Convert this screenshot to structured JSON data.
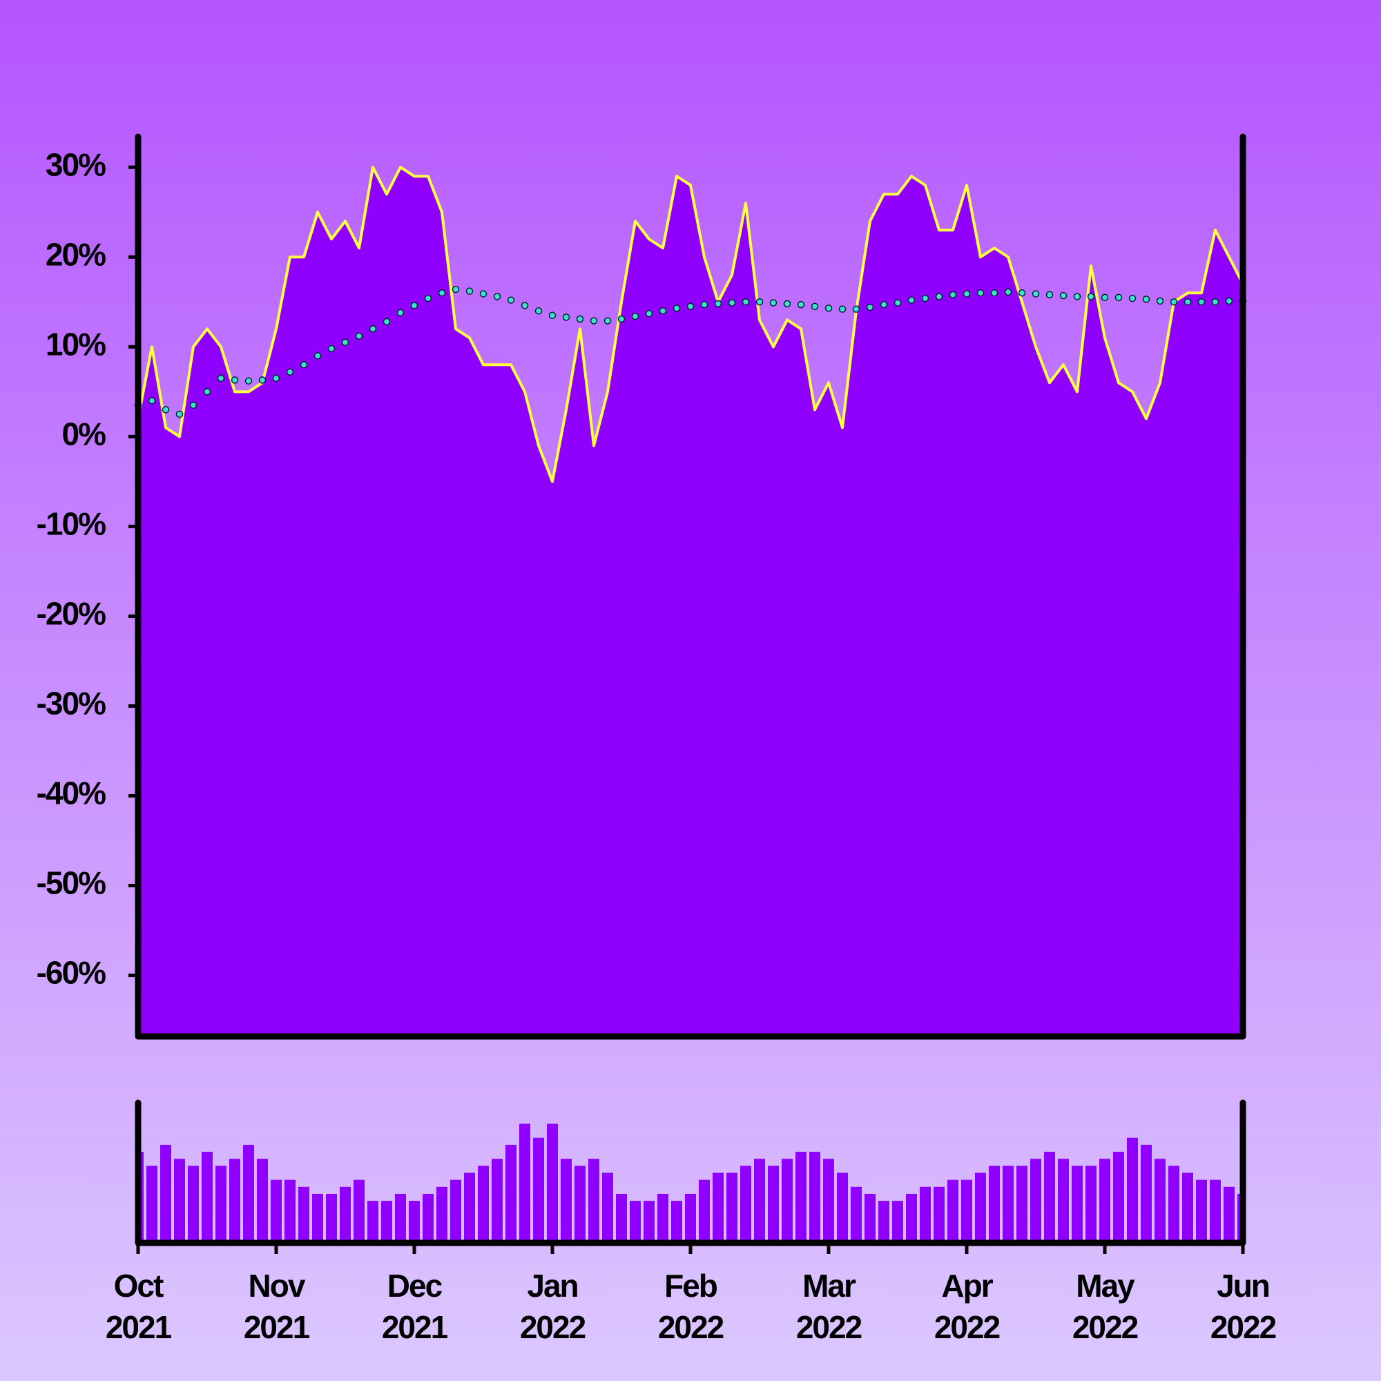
{
  "chart_data": [
    {
      "type": "line",
      "x": [
        0,
        0.1,
        0.2,
        0.3,
        0.4,
        0.5,
        0.6,
        0.7,
        0.8,
        0.9,
        1,
        1.1,
        1.2,
        1.3,
        1.4,
        1.5,
        1.6,
        1.7,
        1.8,
        1.9,
        2,
        2.1,
        2.2,
        2.3,
        2.4,
        2.5,
        2.6,
        2.7,
        2.8,
        2.9,
        3,
        3.1,
        3.2,
        3.3,
        3.4,
        3.5,
        3.6,
        3.7,
        3.8,
        3.9,
        4,
        4.1,
        4.2,
        4.3,
        4.4,
        4.5,
        4.6,
        4.7,
        4.8,
        4.9,
        5,
        5.1,
        5.2,
        5.3,
        5.4,
        5.5,
        5.6,
        5.7,
        5.8,
        5.9,
        6,
        6.1,
        6.2,
        6.3,
        6.4,
        6.5,
        6.6,
        6.7,
        6.8,
        6.9,
        7,
        7.1,
        7.2,
        7.3,
        7.4,
        7.5,
        7.6,
        7.7,
        7.8,
        7.9,
        8
      ],
      "series": [
        {
          "color": "#ffff40",
          "fill": "#9000ff",
          "values": [
            2,
            10,
            1,
            0,
            10,
            12,
            10,
            5,
            5,
            6,
            12,
            20,
            20,
            25,
            22,
            24,
            21,
            30,
            27,
            30,
            29,
            29,
            25,
            12,
            11,
            8,
            8,
            8,
            5,
            -1,
            -5,
            3,
            12,
            -1,
            5,
            15,
            24,
            22,
            21,
            29,
            28,
            20,
            15,
            18,
            26,
            13,
            10,
            13,
            12,
            3,
            6,
            1,
            14,
            24,
            27,
            27,
            29,
            28,
            23,
            23,
            28,
            20,
            21,
            20,
            15,
            10,
            6,
            8,
            5,
            19,
            11,
            6,
            5,
            2,
            6,
            15,
            16,
            16,
            23,
            20,
            17
          ]
        },
        {
          "color": "#40e0d0",
          "style": "dots",
          "values": [
            3.5,
            4,
            3,
            2.5,
            3.5,
            5,
            6.5,
            6.3,
            6.2,
            6.3,
            6.5,
            7.2,
            8,
            9,
            9.8,
            10.5,
            11.2,
            12,
            12.8,
            13.8,
            14.6,
            15.4,
            16,
            16.4,
            16.2,
            15.9,
            15.6,
            15.2,
            14.6,
            14,
            13.5,
            13.3,
            13.1,
            12.9,
            12.9,
            13.1,
            13.4,
            13.7,
            14,
            14.3,
            14.5,
            14.7,
            14.8,
            14.9,
            15,
            15,
            14.9,
            14.8,
            14.7,
            14.5,
            14.3,
            14.2,
            14.2,
            14.4,
            14.7,
            14.9,
            15.2,
            15.4,
            15.6,
            15.8,
            15.9,
            16,
            16,
            16.1,
            16,
            15.9,
            15.8,
            15.7,
            15.6,
            15.6,
            15.5,
            15.5,
            15.4,
            15.3,
            15.1,
            15,
            15,
            15,
            15,
            15.1,
            15.1
          ]
        }
      ],
      "xlim": [
        0,
        8
      ],
      "ylim": [
        -66.8,
        33.4
      ],
      "yticks": [
        {
          "value": 30,
          "label": "30%"
        },
        {
          "value": 20,
          "label": "20%"
        },
        {
          "value": 10,
          "label": "10%"
        },
        {
          "value": 0,
          "label": "0%"
        },
        {
          "value": -10,
          "label": "-10%"
        },
        {
          "value": -20,
          "label": "-20%"
        },
        {
          "value": -30,
          "label": "-30%"
        },
        {
          "value": -40,
          "label": "-40%"
        },
        {
          "value": -50,
          "label": "-50%"
        },
        {
          "value": -60,
          "label": "-60%"
        }
      ]
    },
    {
      "type": "bar",
      "color": "#9000ff",
      "x": [
        0,
        0.1,
        0.2,
        0.3,
        0.4,
        0.5,
        0.6,
        0.7,
        0.8,
        0.9,
        1,
        1.1,
        1.2,
        1.3,
        1.4,
        1.5,
        1.6,
        1.7,
        1.8,
        1.9,
        2,
        2.1,
        2.2,
        2.3,
        2.4,
        2.5,
        2.6,
        2.7,
        2.8,
        2.9,
        3,
        3.1,
        3.2,
        3.3,
        3.4,
        3.5,
        3.6,
        3.7,
        3.8,
        3.9,
        4,
        4.1,
        4.2,
        4.3,
        4.4,
        4.5,
        4.6,
        4.7,
        4.8,
        4.9,
        5,
        5.1,
        5.2,
        5.3,
        5.4,
        5.5,
        5.6,
        5.7,
        5.8,
        5.9,
        6,
        6.1,
        6.2,
        6.3,
        6.4,
        6.5,
        6.6,
        6.7,
        6.8,
        6.9,
        7,
        7.1,
        7.2,
        7.3,
        7.4,
        7.5,
        7.6,
        7.7,
        7.8,
        7.9,
        8
      ],
      "values": [
        65,
        55,
        70,
        60,
        55,
        65,
        55,
        60,
        70,
        60,
        45,
        45,
        40,
        35,
        35,
        40,
        45,
        30,
        30,
        35,
        30,
        35,
        40,
        45,
        50,
        55,
        60,
        70,
        85,
        75,
        85,
        60,
        55,
        60,
        50,
        35,
        30,
        30,
        35,
        30,
        35,
        45,
        50,
        50,
        55,
        60,
        55,
        60,
        65,
        65,
        60,
        50,
        40,
        35,
        30,
        30,
        35,
        40,
        40,
        45,
        45,
        50,
        55,
        55,
        55,
        60,
        65,
        60,
        55,
        55,
        60,
        65,
        75,
        70,
        60,
        55,
        50,
        45,
        45,
        40,
        35
      ],
      "xlim": [
        0,
        8
      ],
      "ylim": [
        0,
        100
      ],
      "xticks": [
        {
          "value": 0,
          "label": [
            "Oct",
            "2021"
          ]
        },
        {
          "value": 1,
          "label": [
            "Nov",
            "2021"
          ]
        },
        {
          "value": 2,
          "label": [
            "Dec",
            "2021"
          ]
        },
        {
          "value": 3,
          "label": [
            "Jan",
            "2022"
          ]
        },
        {
          "value": 4,
          "label": [
            "Feb",
            "2022"
          ]
        },
        {
          "value": 5,
          "label": [
            "Mar",
            "2022"
          ]
        },
        {
          "value": 6,
          "label": [
            "Apr",
            "2022"
          ]
        },
        {
          "value": 7,
          "label": [
            "May",
            "2022"
          ]
        },
        {
          "value": 8,
          "label": [
            "Jun",
            "2022"
          ]
        }
      ]
    }
  ]
}
